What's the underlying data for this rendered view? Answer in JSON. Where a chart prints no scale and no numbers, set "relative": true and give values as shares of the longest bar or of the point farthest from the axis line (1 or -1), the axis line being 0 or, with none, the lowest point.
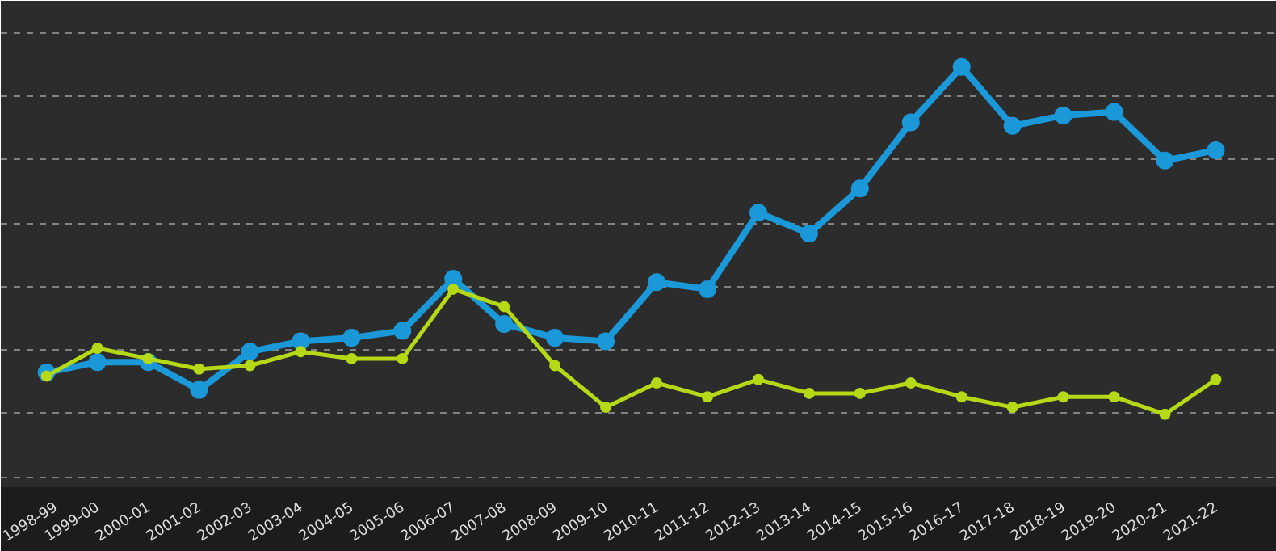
{
  "chart_data": {
    "type": "line",
    "relative": true,
    "grid": "y",
    "marker": "circle",
    "line_style": "solid",
    "categories": [
      "1998-99",
      "1999-00",
      "2000-01",
      "2001-02",
      "2002-03",
      "2003-04",
      "2004-05",
      "2005-06",
      "2006-07",
      "2007-08",
      "2008-09",
      "2009-10",
      "2010-11",
      "2011-12",
      "2012-13",
      "2013-14",
      "2014-15",
      "2015-16",
      "2016-17",
      "2017-18",
      "2018-19",
      "2019-20",
      "2020-21",
      "2021-22"
    ],
    "series": [
      {
        "color": "#1a98d8",
        "values": [
          0.12,
          0.15,
          0.15,
          0.07,
          0.18,
          0.21,
          0.22,
          0.24,
          0.39,
          0.26,
          0.22,
          0.21,
          0.38,
          0.36,
          0.58,
          0.52,
          0.65,
          0.84,
          1,
          0.83,
          0.86,
          0.87,
          0.73,
          0.76
        ]
      },
      {
        "color": "#b5d916",
        "values": [
          0.11,
          0.19,
          0.16,
          0.13,
          0.14,
          0.18,
          0.16,
          0.16,
          0.36,
          0.31,
          0.14,
          0.02,
          0.09,
          0.05,
          0.1,
          0.06,
          0.06,
          0.09,
          0.05,
          0.02,
          0.05,
          0.05,
          0,
          0.1
        ]
      }
    ]
  }
}
